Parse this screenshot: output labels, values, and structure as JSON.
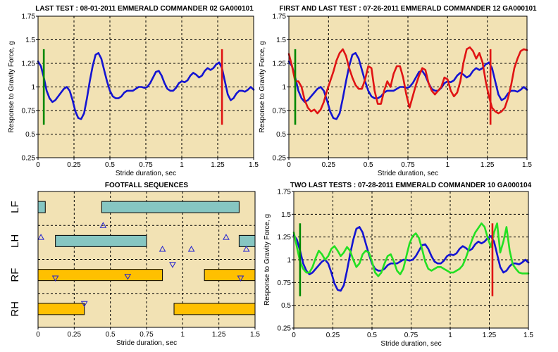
{
  "colors": {
    "plot_bg": "#f2e2b4",
    "grid": "#000000",
    "blue": "#1414d2",
    "red": "#e01414",
    "green_line": "#22e022",
    "marker_green": "#008800",
    "marker_red": "#e01414",
    "bar_teal": "#86c6c2",
    "bar_orange": "#ffc000",
    "triangle": "#2020d0"
  },
  "chart_data": [
    {
      "type": "line",
      "title": "LAST TEST : 08-01-2011 EMMERALD COMMANDER 02 GA000101",
      "xlabel": "Stride duration, sec",
      "ylabel": "Response to Gravity Force, g",
      "xlim": [
        0,
        1.5
      ],
      "ylim": [
        0.25,
        1.75
      ],
      "xticks": [
        "0",
        "0.25",
        "0.5",
        "0.75",
        "1",
        "1.25",
        "1.5"
      ],
      "yticks": [
        "0.25",
        "0.5",
        "0.75",
        "1",
        "1.25",
        "1.5",
        "1.75"
      ],
      "grid": true,
      "markers": [
        {
          "x": 0.04,
          "y_from": 0.6,
          "y_to": 1.4,
          "color": "green"
        },
        {
          "x": 1.28,
          "y_from": 0.6,
          "y_to": 1.4,
          "color": "red"
        }
      ],
      "series": [
        {
          "color": "blue",
          "x": [
            0,
            0.02,
            0.04,
            0.06,
            0.08,
            0.1,
            0.12,
            0.14,
            0.16,
            0.18,
            0.2,
            0.22,
            0.24,
            0.26,
            0.28,
            0.3,
            0.32,
            0.34,
            0.36,
            0.38,
            0.4,
            0.42,
            0.44,
            0.46,
            0.48,
            0.5,
            0.52,
            0.54,
            0.56,
            0.58,
            0.6,
            0.62,
            0.64,
            0.66,
            0.68,
            0.7,
            0.72,
            0.74,
            0.76,
            0.78,
            0.8,
            0.82,
            0.84,
            0.86,
            0.88,
            0.9,
            0.92,
            0.94,
            0.96,
            0.98,
            1,
            1.02,
            1.04,
            1.06,
            1.08,
            1.1,
            1.12,
            1.14,
            1.16,
            1.18,
            1.2,
            1.22,
            1.24,
            1.26,
            1.28,
            1.3,
            1.32,
            1.34,
            1.36,
            1.38,
            1.4,
            1.42,
            1.44,
            1.46,
            1.48,
            1.5
          ],
          "y": [
            1.27,
            1.22,
            1.1,
            0.96,
            0.88,
            0.84,
            0.86,
            0.9,
            0.94,
            0.98,
            1.0,
            0.96,
            0.86,
            0.74,
            0.67,
            0.66,
            0.72,
            0.88,
            1.06,
            1.22,
            1.34,
            1.36,
            1.3,
            1.18,
            1.06,
            0.96,
            0.9,
            0.88,
            0.88,
            0.9,
            0.94,
            0.96,
            0.96,
            0.96,
            0.98,
            1.0,
            1.0,
            0.99,
            1.0,
            1.04,
            1.1,
            1.16,
            1.17,
            1.12,
            1.04,
            0.98,
            0.96,
            0.96,
            0.99,
            1.04,
            1.06,
            1.05,
            1.07,
            1.12,
            1.15,
            1.13,
            1.1,
            1.12,
            1.17,
            1.2,
            1.18,
            1.2,
            1.24,
            1.26,
            1.2,
            1.06,
            0.92,
            0.86,
            0.88,
            0.93,
            0.96,
            0.96,
            0.95,
            0.97,
            1.0,
            0.97
          ]
        }
      ]
    },
    {
      "type": "line",
      "title": "FIRST AND LAST TEST : 07-26-2011 EMMERALD COMMANDER 12 GA000101",
      "xlabel": "Stride duration, sec",
      "ylabel": "Response to Gravity Force, g",
      "xlim": [
        0,
        1.5
      ],
      "ylim": [
        0.25,
        1.75
      ],
      "xticks": [
        "0",
        "0.25",
        "0.5",
        "0.75",
        "1",
        "1.25",
        "1.5"
      ],
      "yticks": [
        "0.25",
        "0.5",
        "0.75",
        "1",
        "1.25",
        "1.5",
        "1.75"
      ],
      "grid": true,
      "markers": [
        {
          "x": 0.04,
          "y_from": 0.6,
          "y_to": 1.4,
          "color": "green"
        },
        {
          "x": 1.27,
          "y_from": 0.6,
          "y_to": 1.4,
          "color": "red"
        }
      ],
      "series": [
        {
          "color": "blue",
          "x": [
            0,
            0.02,
            0.04,
            0.06,
            0.08,
            0.1,
            0.12,
            0.14,
            0.16,
            0.18,
            0.2,
            0.22,
            0.24,
            0.26,
            0.28,
            0.3,
            0.32,
            0.34,
            0.36,
            0.38,
            0.4,
            0.42,
            0.44,
            0.46,
            0.48,
            0.5,
            0.52,
            0.54,
            0.56,
            0.58,
            0.6,
            0.62,
            0.64,
            0.66,
            0.68,
            0.7,
            0.72,
            0.74,
            0.76,
            0.78,
            0.8,
            0.82,
            0.84,
            0.86,
            0.88,
            0.9,
            0.92,
            0.94,
            0.96,
            0.98,
            1,
            1.02,
            1.04,
            1.06,
            1.08,
            1.1,
            1.12,
            1.14,
            1.16,
            1.18,
            1.2,
            1.22,
            1.24,
            1.26,
            1.28,
            1.3,
            1.32,
            1.34,
            1.36,
            1.38,
            1.4,
            1.42,
            1.44,
            1.46,
            1.48,
            1.5
          ],
          "y": [
            1.27,
            1.22,
            1.1,
            0.96,
            0.88,
            0.84,
            0.86,
            0.9,
            0.94,
            0.98,
            1.0,
            0.96,
            0.86,
            0.74,
            0.67,
            0.66,
            0.72,
            0.88,
            1.06,
            1.22,
            1.34,
            1.36,
            1.3,
            1.18,
            1.06,
            0.96,
            0.9,
            0.88,
            0.88,
            0.9,
            0.94,
            0.96,
            0.96,
            0.96,
            0.98,
            1.0,
            1.0,
            0.99,
            1.0,
            1.04,
            1.1,
            1.16,
            1.17,
            1.12,
            1.04,
            0.98,
            0.96,
            0.96,
            0.99,
            1.04,
            1.06,
            1.05,
            1.07,
            1.12,
            1.15,
            1.13,
            1.1,
            1.12,
            1.17,
            1.2,
            1.18,
            1.2,
            1.24,
            1.26,
            1.2,
            1.06,
            0.92,
            0.86,
            0.88,
            0.93,
            0.96,
            0.96,
            0.95,
            0.97,
            1.0,
            0.97
          ]
        },
        {
          "color": "red",
          "x": [
            0,
            0.02,
            0.04,
            0.06,
            0.08,
            0.1,
            0.12,
            0.14,
            0.16,
            0.18,
            0.2,
            0.22,
            0.24,
            0.26,
            0.28,
            0.3,
            0.32,
            0.34,
            0.36,
            0.38,
            0.4,
            0.42,
            0.44,
            0.46,
            0.48,
            0.5,
            0.52,
            0.54,
            0.56,
            0.58,
            0.6,
            0.62,
            0.64,
            0.66,
            0.68,
            0.7,
            0.72,
            0.74,
            0.76,
            0.78,
            0.8,
            0.82,
            0.84,
            0.86,
            0.88,
            0.9,
            0.92,
            0.94,
            0.96,
            0.98,
            1,
            1.02,
            1.04,
            1.06,
            1.08,
            1.1,
            1.12,
            1.14,
            1.16,
            1.18,
            1.2,
            1.22,
            1.24,
            1.26,
            1.28,
            1.3,
            1.32,
            1.34,
            1.36,
            1.38,
            1.4,
            1.42,
            1.44,
            1.46,
            1.48,
            1.5
          ],
          "y": [
            1.35,
            1.22,
            1.06,
            1.06,
            1.0,
            0.86,
            0.78,
            0.74,
            0.76,
            0.72,
            0.76,
            0.84,
            0.96,
            1.06,
            1.16,
            1.28,
            1.36,
            1.4,
            1.33,
            1.2,
            1.1,
            1.02,
            0.98,
            0.98,
            1.08,
            1.22,
            1.2,
            0.96,
            0.82,
            0.82,
            0.96,
            1.06,
            1.0,
            1.14,
            1.22,
            1.22,
            1.1,
            0.92,
            0.78,
            0.9,
            1.02,
            1.12,
            1.2,
            1.18,
            1.04,
            0.96,
            0.92,
            0.96,
            1.0,
            1.1,
            1.08,
            0.96,
            0.9,
            0.94,
            1.06,
            1.26,
            1.4,
            1.42,
            1.38,
            1.3,
            1.36,
            1.26,
            1.06,
            0.9,
            0.78,
            0.74,
            0.72,
            0.74,
            0.78,
            0.88,
            1.02,
            1.2,
            1.3,
            1.38,
            1.4,
            1.39
          ]
        }
      ]
    },
    {
      "type": "bar",
      "title": "FOOTFALL SEQUENCES",
      "xlabel": "Stride duration, sec",
      "xlim": [
        0,
        1.5
      ],
      "xticks": [
        "0",
        "0.25",
        "0.5",
        "0.75",
        "1",
        "1.25",
        "1.5"
      ],
      "grid": true,
      "lanes": [
        "LF",
        "LH",
        "RF",
        "RH"
      ],
      "bars": [
        {
          "lane": "LF",
          "x0": 0.0,
          "x1": 0.05,
          "color": "teal"
        },
        {
          "lane": "LF",
          "x0": 0.44,
          "x1": 1.39,
          "color": "teal"
        },
        {
          "lane": "LH",
          "x0": 0.12,
          "x1": 0.75,
          "color": "teal"
        },
        {
          "lane": "LH",
          "x0": 1.39,
          "x1": 1.5,
          "color": "teal"
        },
        {
          "lane": "RF",
          "x0": 0.0,
          "x1": 0.86,
          "color": "orange"
        },
        {
          "lane": "RF",
          "x0": 1.15,
          "x1": 1.5,
          "color": "orange"
        },
        {
          "lane": "RH",
          "x0": 0.0,
          "x1": 0.32,
          "color": "orange"
        },
        {
          "lane": "RH",
          "x0": 0.94,
          "x1": 1.5,
          "color": "orange"
        }
      ],
      "triangles": [
        {
          "x": 0.02,
          "lane_pos": 1.35,
          "dir": "up"
        },
        {
          "x": 0.45,
          "lane_pos": 1.0,
          "dir": "up"
        },
        {
          "x": 0.86,
          "lane_pos": 1.7,
          "dir": "up"
        },
        {
          "x": 1.06,
          "lane_pos": 1.7,
          "dir": "up"
        },
        {
          "x": 1.3,
          "lane_pos": 1.35,
          "dir": "up"
        },
        {
          "x": 1.44,
          "lane_pos": 1.7,
          "dir": "up"
        },
        {
          "x": 0.12,
          "lane_pos": 2.55,
          "dir": "down"
        },
        {
          "x": 0.62,
          "lane_pos": 2.5,
          "dir": "down"
        },
        {
          "x": 0.93,
          "lane_pos": 2.15,
          "dir": "down"
        },
        {
          "x": 1.4,
          "lane_pos": 2.55,
          "dir": "down"
        },
        {
          "x": 0.32,
          "lane_pos": 3.3,
          "dir": "down"
        }
      ]
    },
    {
      "type": "line",
      "title": "TWO LAST TESTS : 07-28-2011 EMMERALD COMMANDER 10 GA000104",
      "xlabel": "Stride duration, sec",
      "ylabel": "Response to Gravity Force, g",
      "xlim": [
        0,
        1.5
      ],
      "ylim": [
        0.25,
        1.75
      ],
      "xticks": [
        "0",
        "0.25",
        "0.5",
        "0.75",
        "1",
        "1.25",
        "1.5"
      ],
      "yticks": [
        "0.25",
        "0.5",
        "0.75",
        "1",
        "1.25",
        "1.5",
        "1.75"
      ],
      "grid": true,
      "markers": [
        {
          "x": 0.04,
          "y_from": 0.6,
          "y_to": 1.4,
          "color": "green"
        },
        {
          "x": 1.27,
          "y_from": 0.6,
          "y_to": 1.4,
          "color": "red"
        }
      ],
      "series": [
        {
          "color": "blue",
          "x": [
            0,
            0.02,
            0.04,
            0.06,
            0.08,
            0.1,
            0.12,
            0.14,
            0.16,
            0.18,
            0.2,
            0.22,
            0.24,
            0.26,
            0.28,
            0.3,
            0.32,
            0.34,
            0.36,
            0.38,
            0.4,
            0.42,
            0.44,
            0.46,
            0.48,
            0.5,
            0.52,
            0.54,
            0.56,
            0.58,
            0.6,
            0.62,
            0.64,
            0.66,
            0.68,
            0.7,
            0.72,
            0.74,
            0.76,
            0.78,
            0.8,
            0.82,
            0.84,
            0.86,
            0.88,
            0.9,
            0.92,
            0.94,
            0.96,
            0.98,
            1,
            1.02,
            1.04,
            1.06,
            1.08,
            1.1,
            1.12,
            1.14,
            1.16,
            1.18,
            1.2,
            1.22,
            1.24,
            1.26,
            1.28,
            1.3,
            1.32,
            1.34,
            1.36,
            1.38,
            1.4,
            1.42,
            1.44,
            1.46,
            1.48,
            1.5
          ],
          "y": [
            1.27,
            1.22,
            1.1,
            0.96,
            0.88,
            0.84,
            0.86,
            0.9,
            0.94,
            0.98,
            1.0,
            0.96,
            0.86,
            0.74,
            0.67,
            0.66,
            0.72,
            0.88,
            1.06,
            1.22,
            1.34,
            1.36,
            1.3,
            1.18,
            1.06,
            0.96,
            0.9,
            0.88,
            0.88,
            0.9,
            0.94,
            0.96,
            0.96,
            0.96,
            0.98,
            1.0,
            1.0,
            0.99,
            1.0,
            1.04,
            1.1,
            1.16,
            1.17,
            1.12,
            1.04,
            0.98,
            0.96,
            0.96,
            0.99,
            1.04,
            1.06,
            1.05,
            1.07,
            1.12,
            1.15,
            1.13,
            1.1,
            1.12,
            1.17,
            1.2,
            1.18,
            1.2,
            1.24,
            1.26,
            1.2,
            1.06,
            0.92,
            0.86,
            0.88,
            0.93,
            0.96,
            0.96,
            0.95,
            0.97,
            1.0,
            0.97
          ]
        },
        {
          "color": "green",
          "x": [
            0,
            0.02,
            0.04,
            0.06,
            0.08,
            0.1,
            0.12,
            0.14,
            0.16,
            0.18,
            0.2,
            0.22,
            0.24,
            0.26,
            0.28,
            0.3,
            0.32,
            0.34,
            0.36,
            0.38,
            0.4,
            0.42,
            0.44,
            0.46,
            0.48,
            0.5,
            0.52,
            0.54,
            0.56,
            0.58,
            0.6,
            0.62,
            0.64,
            0.66,
            0.68,
            0.7,
            0.72,
            0.74,
            0.76,
            0.78,
            0.8,
            0.82,
            0.84,
            0.86,
            0.88,
            0.9,
            0.92,
            0.94,
            0.96,
            0.98,
            1,
            1.02,
            1.04,
            1.06,
            1.08,
            1.1,
            1.12,
            1.14,
            1.16,
            1.18,
            1.2,
            1.22,
            1.24,
            1.26,
            1.28,
            1.3,
            1.32,
            1.34,
            1.36,
            1.38,
            1.4,
            1.42,
            1.44,
            1.46,
            1.48,
            1.5
          ],
          "y": [
            1.3,
            1.14,
            0.98,
            0.9,
            0.86,
            0.86,
            0.92,
            1.02,
            1.1,
            1.06,
            1.0,
            1.04,
            1.12,
            1.15,
            1.1,
            1.04,
            1.08,
            1.14,
            1.1,
            1.0,
            0.92,
            0.96,
            1.06,
            1.1,
            1.08,
            0.98,
            0.86,
            0.82,
            0.86,
            0.96,
            1.04,
            1.06,
            0.98,
            0.88,
            0.84,
            0.9,
            1.04,
            1.18,
            1.26,
            1.29,
            1.24,
            1.12,
            0.98,
            0.9,
            0.88,
            0.9,
            0.92,
            0.92,
            0.9,
            0.88,
            0.86,
            0.86,
            0.88,
            0.9,
            0.94,
            1.02,
            1.12,
            1.22,
            1.3,
            1.35,
            1.4,
            1.36,
            1.24,
            1.14,
            1.3,
            1.4,
            1.08,
            1.2,
            1.36,
            1.1,
            0.95,
            0.9,
            0.86,
            0.85,
            0.85,
            0.85
          ]
        }
      ]
    }
  ]
}
